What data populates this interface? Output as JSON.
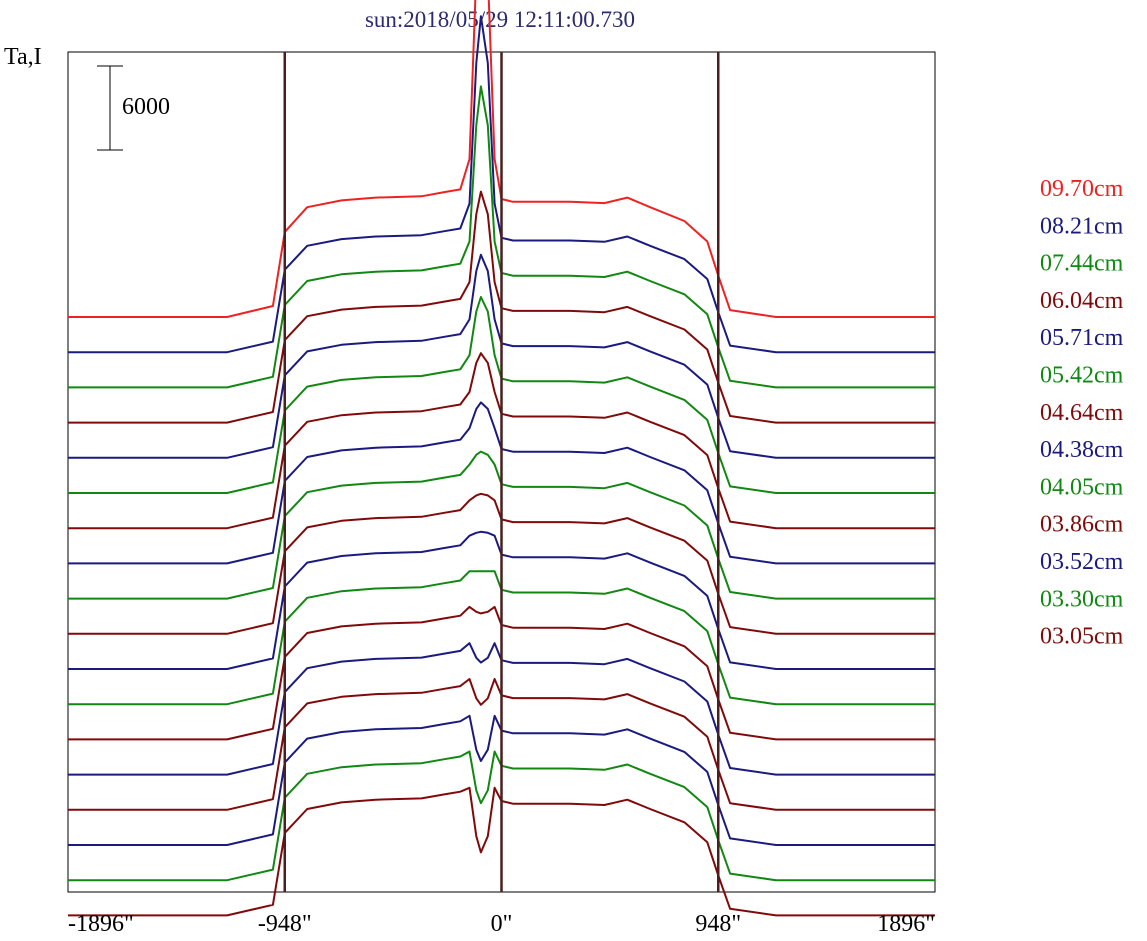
{
  "chart_data": {
    "type": "line",
    "title": "sun:2018/05/29 12:11:00.730",
    "ylabel": "Ta,I",
    "xlabel": "",
    "scale_bar": {
      "label": "6000",
      "value": 6000
    },
    "xlim": [
      -1896,
      1896
    ],
    "x_ticks": [
      {
        "value": -1896,
        "label": "-1896\""
      },
      {
        "value": -948,
        "label": "-948\""
      },
      {
        "value": 0,
        "label": "0\""
      },
      {
        "value": 948,
        "label": "948\""
      },
      {
        "value": 1896,
        "label": "1896\""
      }
    ],
    "vertical_lines": [
      -948,
      0,
      948
    ],
    "grid": false,
    "legend_position": "right",
    "colors": {
      "red": "#ee2222",
      "blue": "#1a1a80",
      "green": "#118811",
      "maroon": "#800a0a",
      "vline": "#4a1f1f"
    },
    "profile_x": [
      -1896,
      -1200,
      -1000,
      -948,
      -850,
      -700,
      -550,
      -350,
      -250,
      -180,
      -140,
      -110,
      -90,
      -60,
      -30,
      0,
      50,
      150,
      300,
      450,
      550,
      650,
      800,
      900,
      948,
      1000,
      1200,
      1896
    ],
    "profile_shape": [
      0,
      0,
      0.08,
      0.62,
      0.8,
      0.85,
      0.87,
      0.88,
      0.91,
      0.93,
      1.1,
      2.0,
      2.3,
      2.0,
      1.1,
      0.86,
      0.84,
      0.84,
      0.84,
      0.83,
      0.87,
      0.8,
      0.7,
      0.55,
      0.3,
      0.05,
      0,
      0
    ],
    "series": [
      {
        "name": "09.70cm",
        "color": "red",
        "disk_level": 9800,
        "peak": 29000
      },
      {
        "name": "08.21cm",
        "color": "blue",
        "disk_level": 9500,
        "peak": 24000
      },
      {
        "name": "07.44cm",
        "color": "green",
        "disk_level": 9500,
        "peak": 21500
      },
      {
        "name": "06.04cm",
        "color": "maroon",
        "disk_level": 9500,
        "peak": 16500
      },
      {
        "name": "05.71cm",
        "color": "blue",
        "disk_level": 9500,
        "peak": 14500
      },
      {
        "name": "05.42cm",
        "color": "green",
        "disk_level": 9500,
        "peak": 14000
      },
      {
        "name": "04.64cm",
        "color": "maroon",
        "disk_level": 9500,
        "peak": 12500
      },
      {
        "name": "04.38cm",
        "color": "blue",
        "disk_level": 9500,
        "peak": 11500
      },
      {
        "name": "04.05cm",
        "color": "green",
        "disk_level": 9500,
        "peak": 10500
      },
      {
        "name": "03.86cm",
        "color": "maroon",
        "disk_level": 9500,
        "peak": 10000
      },
      {
        "name": "03.52cm",
        "color": "blue",
        "disk_level": 9500,
        "peak": 9800
      },
      {
        "name": "03.30cm",
        "color": "green",
        "disk_level": 9500,
        "peak": 9500
      },
      {
        "name": "03.05cm",
        "color": "maroon",
        "disk_level": 9500,
        "peak": 9000
      },
      {
        "name": "",
        "color": "blue",
        "disk_level": 9500,
        "peak": 8000
      },
      {
        "name": "",
        "color": "maroon",
        "disk_level": 9500,
        "peak": 7500
      },
      {
        "name": "",
        "color": "blue",
        "disk_level": 9500,
        "peak": 6000
      },
      {
        "name": "",
        "color": "green",
        "disk_level": 9500,
        "peak": 5500
      },
      {
        "name": "",
        "color": "maroon",
        "disk_level": 9500,
        "peak": 4500
      }
    ]
  }
}
